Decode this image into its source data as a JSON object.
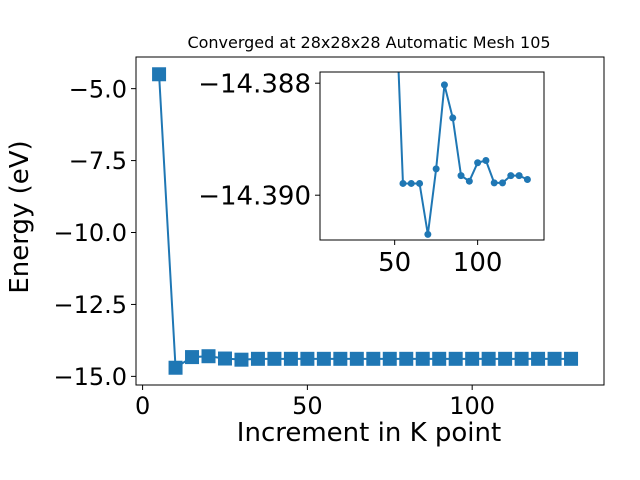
{
  "chart_data": [
    {
      "type": "line",
      "title": "Converged at 28x28x28 Automatic Mesh 105",
      "xlabel": "Increment in K point",
      "ylabel": "Energy (eV)",
      "xlim": [
        -2,
        140
      ],
      "ylim": [
        -15.3,
        -3.9
      ],
      "xticks": [
        0,
        50,
        100
      ],
      "xtick_labels": [
        "0",
        "50",
        "100"
      ],
      "yticks": [
        -5.0,
        -7.5,
        -10.0,
        -12.5,
        -15.0
      ],
      "ytick_labels": [
        "−5.0",
        "−7.5",
        "−10.0",
        "−12.5",
        "−15.0"
      ],
      "marker": "square",
      "color": "#1f77b4",
      "x": [
        5,
        10,
        15,
        20,
        25,
        30,
        35,
        40,
        45,
        50,
        55,
        60,
        65,
        70,
        75,
        80,
        85,
        90,
        95,
        100,
        105,
        110,
        115,
        120,
        125,
        130
      ],
      "y": [
        -4.5,
        -14.7,
        -14.33,
        -14.3,
        -14.38,
        -14.42,
        -14.39,
        -14.39,
        -14.39,
        -14.39,
        -14.39,
        -14.39,
        -14.39,
        -14.39,
        -14.39,
        -14.39,
        -14.39,
        -14.39,
        -14.39,
        -14.39,
        -14.39,
        -14.39,
        -14.39,
        -14.39,
        -14.39,
        -14.39
      ]
    },
    {
      "type": "line",
      "title": "",
      "xlabel": "",
      "ylabel": "",
      "inset": true,
      "xlim": [
        5,
        140
      ],
      "ylim": [
        -14.3908,
        -14.3878
      ],
      "xticks": [
        50,
        100
      ],
      "xtick_labels": [
        "50",
        "100"
      ],
      "yticks": [
        -14.39,
        -14.388
      ],
      "ytick_labels": [
        "−14.390",
        "−14.388"
      ],
      "marker": "circle",
      "color": "#1f77b4",
      "x": [
        50,
        55,
        60,
        65,
        70,
        75,
        80,
        85,
        90,
        95,
        100,
        105,
        110,
        115,
        120,
        125,
        130
      ],
      "y": [
        -14.386,
        -14.38979,
        -14.38979,
        -14.38979,
        -14.3907,
        -14.38953,
        -14.38803,
        -14.38862,
        -14.38965,
        -14.38975,
        -14.38942,
        -14.38938,
        -14.38978,
        -14.38978,
        -14.38965,
        -14.38965,
        -14.38972
      ]
    }
  ]
}
